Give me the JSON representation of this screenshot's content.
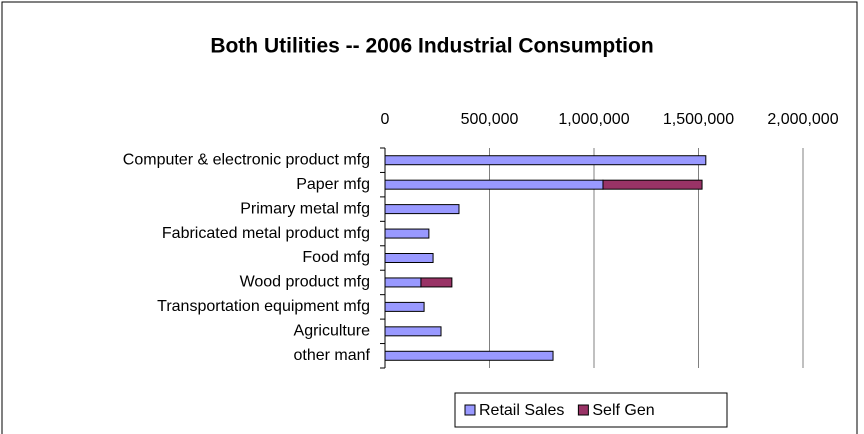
{
  "chart_data": {
    "type": "stacked_bar_horizontal",
    "title": "Both Utilities -- 2006 Industrial Consumption",
    "categories": [
      "Computer & electronic product mfg",
      "Paper mfg",
      "Primary metal mfg",
      "Fabricated metal product mfg",
      "Food mfg",
      "Wood product mfg",
      "Transportation equipment mfg",
      "Agriculture",
      "other manf"
    ],
    "series": [
      {
        "name": "Retail Sales",
        "color": "#9999ff",
        "values": [
          1535000,
          1043000,
          354000,
          210000,
          230000,
          172000,
          187000,
          268000,
          804000
        ]
      },
      {
        "name": "Self Gen",
        "color": "#993366",
        "values": [
          0,
          474000,
          0,
          0,
          0,
          148000,
          0,
          0,
          0
        ]
      }
    ],
    "xlim": [
      0,
      2000000
    ],
    "xticks": [
      0,
      {
        "value": 500000,
        "label": "500,000"
      },
      {
        "value": 1000000,
        "label": "1,000,000"
      },
      {
        "value": 1500000,
        "label": "1,500,000"
      },
      {
        "value": 2000000,
        "label": "2,000,000"
      }
    ],
    "grid": true,
    "legend": "bottom"
  }
}
